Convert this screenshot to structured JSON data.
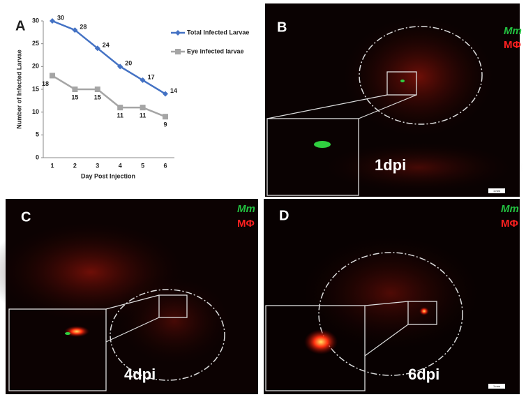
{
  "chart_data": {
    "type": "line",
    "panel_label": "A",
    "x_label": "Day Post Injection",
    "y_label": "Number of Infected Larvae",
    "categories": [
      "1",
      "2",
      "3",
      "4",
      "5",
      "6"
    ],
    "series": [
      {
        "name": "Total Infected Larvae",
        "color": "#4472c4",
        "marker": "diamond",
        "values": [
          30,
          28,
          24,
          20,
          17,
          14
        ]
      },
      {
        "name": "Eye infected larvae",
        "color": "#a5a5a5",
        "marker": "square",
        "values": [
          18,
          15,
          15,
          11,
          11,
          9
        ]
      }
    ],
    "ylim": [
      0,
      30
    ],
    "yticks": [
      0,
      5,
      10,
      15,
      20,
      25,
      30
    ],
    "grid": false
  },
  "panels": [
    {
      "label": "B",
      "legend": [
        "Mm",
        "MΦ"
      ],
      "time": "1dpi",
      "scale": "1 mm"
    },
    {
      "label": "C",
      "legend": [
        "Mm",
        "MΦ"
      ],
      "time": "4dpi"
    },
    {
      "label": "D",
      "legend": [
        "Mm",
        "MΦ"
      ],
      "time": "6dpi",
      "scale": "1 mm"
    }
  ]
}
